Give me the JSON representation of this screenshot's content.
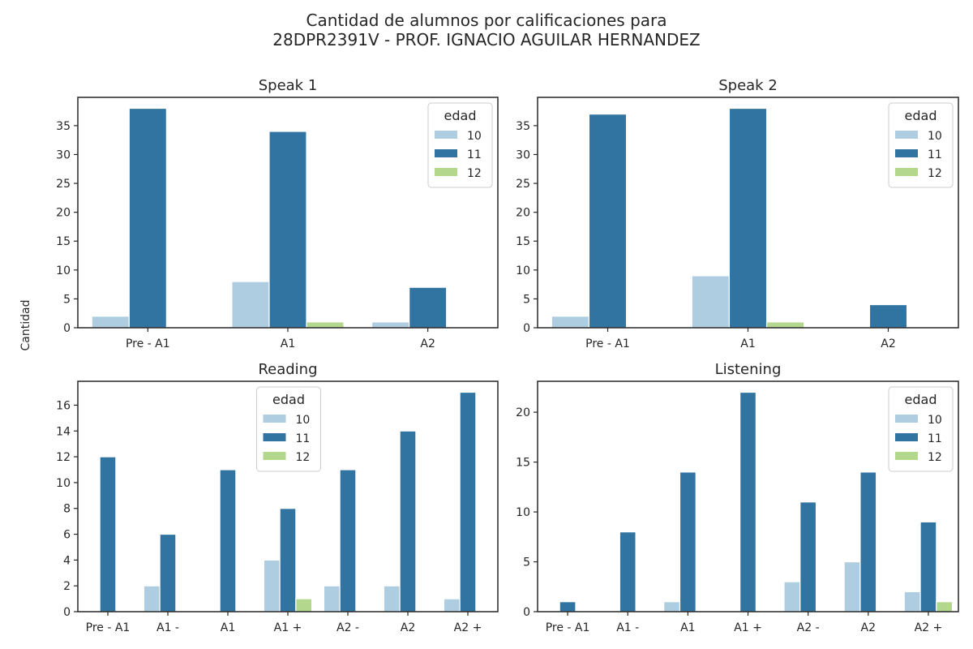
{
  "figure": {
    "title_line1": "Cantidad de alumnos por calificaciones para",
    "title_line2": "28DPR2391V - PROF. IGNACIO AGUILAR HERNANDEZ",
    "ylabel": "Cantidad"
  },
  "legend": {
    "title": "edad",
    "entries": [
      "10",
      "11",
      "12"
    ]
  },
  "colors": {
    "10": "#aecde1",
    "11": "#3174a1",
    "12": "#b3d78c"
  },
  "chart_data": [
    {
      "type": "bar",
      "title": "Speak 1",
      "categories": [
        "Pre - A1",
        "A1",
        "A2"
      ],
      "series": [
        {
          "name": "10",
          "values": [
            2,
            8,
            1
          ]
        },
        {
          "name": "11",
          "values": [
            38,
            34,
            7
          ]
        },
        {
          "name": "12",
          "values": [
            0,
            1,
            0
          ]
        }
      ],
      "ylim": [
        0,
        39.9
      ],
      "yticks": [
        0,
        5,
        10,
        15,
        20,
        25,
        30,
        35
      ],
      "legend_loc": "upper right"
    },
    {
      "type": "bar",
      "title": "Speak 2",
      "categories": [
        "Pre - A1",
        "A1",
        "A2"
      ],
      "series": [
        {
          "name": "10",
          "values": [
            2,
            9,
            0
          ]
        },
        {
          "name": "11",
          "values": [
            37,
            38,
            4
          ]
        },
        {
          "name": "12",
          "values": [
            0,
            1,
            0
          ]
        }
      ],
      "ylim": [
        0,
        39.9
      ],
      "yticks": [
        0,
        5,
        10,
        15,
        20,
        25,
        30,
        35
      ],
      "legend_loc": "upper right"
    },
    {
      "type": "bar",
      "title": "Reading",
      "categories": [
        "Pre - A1",
        "A1 -",
        "A1",
        "A1 +",
        "A2 -",
        "A2",
        "A2 +"
      ],
      "series": [
        {
          "name": "10",
          "values": [
            0,
            2,
            0,
            4,
            2,
            2,
            1
          ]
        },
        {
          "name": "11",
          "values": [
            12,
            6,
            11,
            8,
            11,
            14,
            17
          ]
        },
        {
          "name": "12",
          "values": [
            0,
            0,
            0,
            1,
            0,
            0,
            0
          ]
        }
      ],
      "ylim": [
        0,
        17.85
      ],
      "yticks": [
        0,
        2,
        4,
        6,
        8,
        10,
        12,
        14,
        16
      ],
      "legend_loc": "upper center"
    },
    {
      "type": "bar",
      "title": "Listening",
      "categories": [
        "Pre - A1",
        "A1 -",
        "A1",
        "A1 +",
        "A2 -",
        "A2",
        "A2 +"
      ],
      "series": [
        {
          "name": "10",
          "values": [
            0,
            0,
            1,
            0,
            3,
            5,
            2
          ]
        },
        {
          "name": "11",
          "values": [
            1,
            8,
            14,
            22,
            11,
            14,
            9
          ]
        },
        {
          "name": "12",
          "values": [
            0,
            0,
            0,
            0,
            0,
            0,
            1
          ]
        }
      ],
      "ylim": [
        0,
        23.1
      ],
      "yticks": [
        0,
        5,
        10,
        15,
        20
      ],
      "legend_loc": "upper right"
    }
  ]
}
